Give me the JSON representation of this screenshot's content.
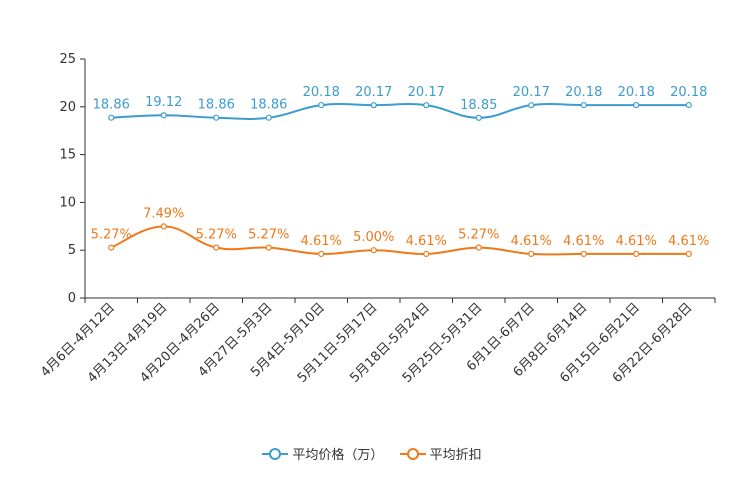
{
  "chart_data": {
    "type": "line",
    "categories": [
      "4月6日-4月12日",
      "4月13日-4月19日",
      "4月20日-4月26日",
      "4月27日-5月3日",
      "5月4日-5月10日",
      "5月11日-5月17日",
      "5月18日-5月24日",
      "5月25日-5月31日",
      "6月1日-6月7日",
      "6月8日-6月14日",
      "6月15日-6月21日",
      "6月22日-6月28日"
    ],
    "series": [
      {
        "name": "平均价格（万）",
        "color": "#3c9ccf",
        "values": [
          18.86,
          19.12,
          18.86,
          18.86,
          20.18,
          20.17,
          20.17,
          18.85,
          20.17,
          20.18,
          20.18,
          20.18
        ],
        "labels": [
          "18.86",
          "19.12",
          "18.86",
          "18.86",
          "20.18",
          "20.17",
          "20.17",
          "18.85",
          "20.17",
          "20.18",
          "20.18",
          "20.18"
        ]
      },
      {
        "name": "平均折扣",
        "color": "#f07818",
        "values": [
          5.27,
          7.49,
          5.27,
          5.27,
          4.61,
          5.0,
          4.61,
          5.27,
          4.61,
          4.61,
          4.61,
          4.61
        ],
        "labels": [
          "5.27%",
          "7.49%",
          "5.27%",
          "5.27%",
          "4.61%",
          "5.00%",
          "4.61%",
          "5.27%",
          "4.61%",
          "4.61%",
          "4.61%",
          "4.61%"
        ]
      }
    ],
    "ylim": [
      0,
      25
    ],
    "yticks": [
      "0",
      "5",
      "10",
      "15",
      "20",
      "25"
    ],
    "title": "",
    "xlabel": "",
    "ylabel": ""
  }
}
